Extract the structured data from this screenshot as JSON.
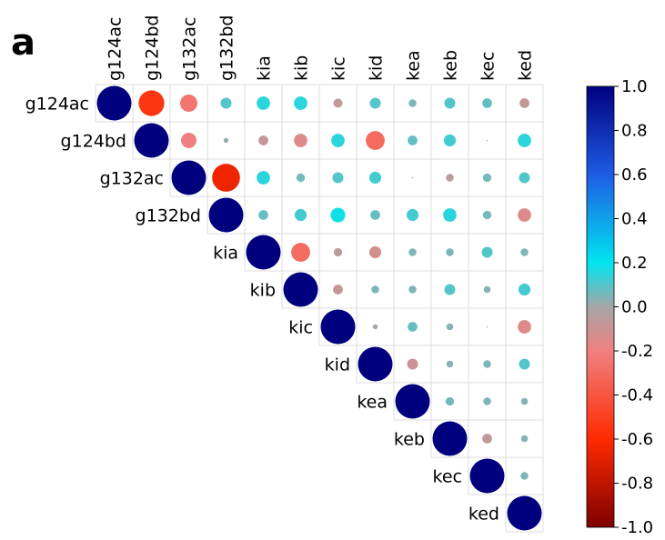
{
  "panel_label": "a",
  "chart_data": {
    "type": "heatmap",
    "subtype": "upper-triangular correlation matrix (circle size and color encode correlation)",
    "variables": [
      "g124ac",
      "g124bd",
      "g132ac",
      "g132bd",
      "kia",
      "kib",
      "kic",
      "kid",
      "kea",
      "keb",
      "kec",
      "ked"
    ],
    "matrix": [
      [
        1.0,
        -0.55,
        -0.25,
        0.1,
        0.15,
        0.15,
        -0.07,
        0.1,
        0.05,
        0.1,
        0.08,
        -0.08
      ],
      [
        null,
        1.0,
        -0.2,
        0.02,
        -0.08,
        -0.15,
        0.15,
        -0.3,
        0.08,
        0.12,
        0.0,
        0.15
      ],
      [
        null,
        null,
        1.0,
        -0.65,
        0.15,
        0.06,
        0.1,
        0.12,
        0.0,
        -0.05,
        0.06,
        0.1
      ],
      [
        null,
        null,
        null,
        1.0,
        0.08,
        0.12,
        0.18,
        0.08,
        0.12,
        0.15,
        0.06,
        -0.15
      ],
      [
        null,
        null,
        null,
        null,
        1.0,
        -0.3,
        -0.06,
        -0.12,
        0.05,
        0.05,
        0.1,
        0.05
      ],
      [
        null,
        null,
        null,
        null,
        null,
        1.0,
        -0.08,
        0.05,
        0.05,
        0.1,
        0.04,
        0.12
      ],
      [
        null,
        null,
        null,
        null,
        null,
        null,
        1.0,
        -0.02,
        0.08,
        0.04,
        0.0,
        -0.15
      ],
      [
        null,
        null,
        null,
        null,
        null,
        null,
        null,
        1.0,
        -0.1,
        0.04,
        0.05,
        0.1
      ],
      [
        null,
        null,
        null,
        null,
        null,
        null,
        null,
        null,
        1.0,
        0.06,
        0.05,
        0.04
      ],
      [
        null,
        null,
        null,
        null,
        null,
        null,
        null,
        null,
        null,
        1.0,
        -0.08,
        0.04
      ],
      [
        null,
        null,
        null,
        null,
        null,
        null,
        null,
        null,
        null,
        null,
        1.0,
        0.05
      ],
      [
        null,
        null,
        null,
        null,
        null,
        null,
        null,
        null,
        null,
        null,
        null,
        1.0
      ]
    ],
    "colorbar": {
      "range": [
        -1.0,
        1.0
      ],
      "ticks": [
        "1.0",
        "0.8",
        "0.6",
        "0.4",
        "0.2",
        "0.0",
        "-0.2",
        "-0.4",
        "-0.6",
        "-0.8",
        "-1.0"
      ],
      "colors": {
        "1.0": "#00007f",
        "0.6": "#1e5ce6",
        "0.2": "#00e5ee",
        "0.0": "#a6a6a6",
        "-0.2": "#f08080",
        "-0.6": "#ff2a00",
        "-1.0": "#7f0000"
      }
    },
    "title": "",
    "xlabel": "",
    "ylabel": ""
  }
}
